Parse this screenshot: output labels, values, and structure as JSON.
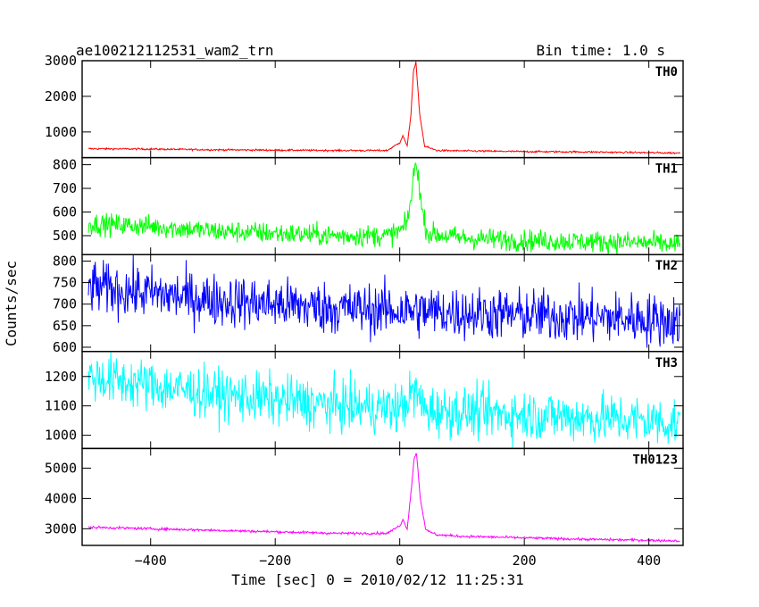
{
  "header": {
    "title": "ae100212112531_wam2_trn",
    "bin_time": "Bin time: 1.0 s"
  },
  "chart_data": {
    "type": "line",
    "xlabel": "Time [sec] 0 = 2010/02/12 11:25:31",
    "ylabel": "Counts/sec",
    "xlim": [
      -510,
      455
    ],
    "xticks": [
      -400,
      -200,
      0,
      200,
      400
    ],
    "xtick_labels": [
      "−400",
      "−200",
      "0",
      "200",
      "400"
    ],
    "panels": [
      {
        "label": "TH0",
        "color": "#ff0000",
        "ylim": [
          280,
          3000
        ],
        "yticks": [
          1000,
          2000,
          3000
        ],
        "series": [
          {
            "x": -500,
            "y": 530
          },
          {
            "x": -400,
            "y": 520
          },
          {
            "x": -300,
            "y": 500
          },
          {
            "x": -200,
            "y": 490
          },
          {
            "x": -100,
            "y": 480
          },
          {
            "x": -20,
            "y": 480
          },
          {
            "x": 0,
            "y": 700
          },
          {
            "x": 5,
            "y": 900
          },
          {
            "x": 12,
            "y": 600
          },
          {
            "x": 18,
            "y": 1500
          },
          {
            "x": 22,
            "y": 2700
          },
          {
            "x": 26,
            "y": 2950
          },
          {
            "x": 32,
            "y": 1500
          },
          {
            "x": 40,
            "y": 600
          },
          {
            "x": 60,
            "y": 480
          },
          {
            "x": 100,
            "y": 470
          },
          {
            "x": 200,
            "y": 450
          },
          {
            "x": 300,
            "y": 440
          },
          {
            "x": 400,
            "y": 420
          },
          {
            "x": 450,
            "y": 410
          }
        ],
        "noise": 25
      },
      {
        "label": "TH1",
        "color": "#00ff00",
        "ylim": [
          420,
          830
        ],
        "yticks": [
          500,
          600,
          700,
          800
        ],
        "series": [
          {
            "x": -500,
            "y": 550
          },
          {
            "x": -400,
            "y": 540
          },
          {
            "x": -300,
            "y": 520
          },
          {
            "x": -200,
            "y": 510
          },
          {
            "x": -100,
            "y": 500
          },
          {
            "x": -20,
            "y": 500
          },
          {
            "x": 0,
            "y": 520
          },
          {
            "x": 10,
            "y": 540
          },
          {
            "x": 18,
            "y": 650
          },
          {
            "x": 24,
            "y": 790
          },
          {
            "x": 28,
            "y": 800
          },
          {
            "x": 36,
            "y": 600
          },
          {
            "x": 45,
            "y": 510
          },
          {
            "x": 100,
            "y": 490
          },
          {
            "x": 200,
            "y": 480
          },
          {
            "x": 300,
            "y": 475
          },
          {
            "x": 400,
            "y": 470
          },
          {
            "x": 450,
            "y": 460
          }
        ],
        "noise": 45
      },
      {
        "label": "TH2",
        "color": "#0000ff",
        "ylim": [
          590,
          815
        ],
        "yticks": [
          600,
          650,
          700,
          750,
          800
        ],
        "series": [
          {
            "x": -500,
            "y": 740
          },
          {
            "x": -400,
            "y": 725
          },
          {
            "x": -300,
            "y": 710
          },
          {
            "x": -200,
            "y": 700
          },
          {
            "x": -100,
            "y": 690
          },
          {
            "x": 0,
            "y": 685
          },
          {
            "x": 100,
            "y": 680
          },
          {
            "x": 200,
            "y": 675
          },
          {
            "x": 300,
            "y": 670
          },
          {
            "x": 400,
            "y": 665
          },
          {
            "x": 450,
            "y": 660
          }
        ],
        "noise": 60
      },
      {
        "label": "TH3",
        "color": "#00ffff",
        "ylim": [
          955,
          1285
        ],
        "yticks": [
          1000,
          1100,
          1200
        ],
        "series": [
          {
            "x": -500,
            "y": 1200
          },
          {
            "x": -400,
            "y": 1170
          },
          {
            "x": -300,
            "y": 1140
          },
          {
            "x": -200,
            "y": 1120
          },
          {
            "x": -100,
            "y": 1100
          },
          {
            "x": 0,
            "y": 1090
          },
          {
            "x": 25,
            "y": 1150
          },
          {
            "x": 40,
            "y": 1085
          },
          {
            "x": 100,
            "y": 1080
          },
          {
            "x": 200,
            "y": 1070
          },
          {
            "x": 300,
            "y": 1060
          },
          {
            "x": 400,
            "y": 1050
          },
          {
            "x": 450,
            "y": 1040
          }
        ],
        "noise": 85
      },
      {
        "label": "TH0123",
        "color": "#ff00ff",
        "ylim": [
          2450,
          5650
        ],
        "yticks": [
          3000,
          4000,
          5000
        ],
        "series": [
          {
            "x": -500,
            "y": 3050
          },
          {
            "x": -400,
            "y": 3000
          },
          {
            "x": -300,
            "y": 2950
          },
          {
            "x": -200,
            "y": 2900
          },
          {
            "x": -100,
            "y": 2850
          },
          {
            "x": -20,
            "y": 2850
          },
          {
            "x": 0,
            "y": 3100
          },
          {
            "x": 5,
            "y": 3300
          },
          {
            "x": 12,
            "y": 3000
          },
          {
            "x": 18,
            "y": 4200
          },
          {
            "x": 23,
            "y": 5300
          },
          {
            "x": 27,
            "y": 5500
          },
          {
            "x": 33,
            "y": 4000
          },
          {
            "x": 42,
            "y": 2950
          },
          {
            "x": 60,
            "y": 2800
          },
          {
            "x": 100,
            "y": 2750
          },
          {
            "x": 200,
            "y": 2700
          },
          {
            "x": 300,
            "y": 2650
          },
          {
            "x": 400,
            "y": 2620
          },
          {
            "x": 450,
            "y": 2600
          }
        ],
        "noise": 40
      }
    ]
  }
}
